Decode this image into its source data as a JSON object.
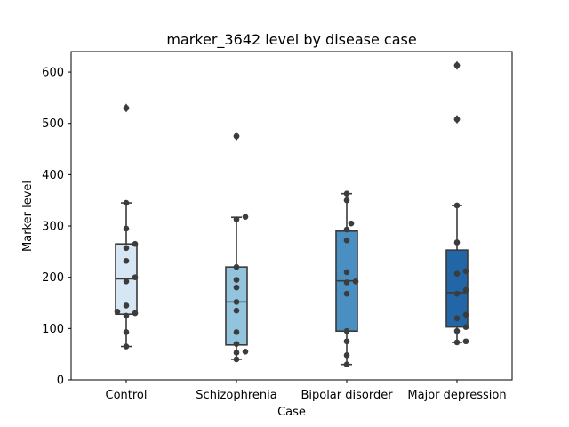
{
  "chart_data": {
    "type": "box",
    "title": "marker_3642 level by disease case",
    "xlabel": "Case",
    "ylabel": "Marker level",
    "ylim": [
      0,
      640
    ],
    "yticks": [
      0,
      100,
      200,
      300,
      400,
      500,
      600
    ],
    "grid": false,
    "legend": "none",
    "categories": [
      "Control",
      "Schizophrenia",
      "Bipolar disorder",
      "Major depression"
    ],
    "colors": [
      "#d6e6f4",
      "#93c4de",
      "#4a8fc2",
      "#2266a8"
    ],
    "series": [
      {
        "whisker_low": 65,
        "q1": 128,
        "median": 197,
        "q3": 265,
        "whisker_high": 345,
        "outliers": [
          530
        ],
        "points": [
          65,
          93,
          125,
          130,
          133,
          145,
          192,
          200,
          232,
          257,
          265,
          295,
          345,
          530
        ]
      },
      {
        "whisker_low": 40,
        "q1": 68,
        "median": 152,
        "q3": 220,
        "whisker_high": 317,
        "outliers": [
          475
        ],
        "points": [
          40,
          53,
          55,
          70,
          93,
          135,
          152,
          180,
          195,
          220,
          313,
          318,
          475
        ]
      },
      {
        "whisker_low": 30,
        "q1": 95,
        "median": 193,
        "q3": 290,
        "whisker_high": 363,
        "outliers": [],
        "points": [
          30,
          48,
          75,
          95,
          168,
          190,
          192,
          210,
          272,
          293,
          305,
          350,
          363
        ]
      },
      {
        "whisker_low": 73,
        "q1": 103,
        "median": 170,
        "q3": 253,
        "whisker_high": 340,
        "outliers": [
          508,
          613
        ],
        "points": [
          73,
          75,
          95,
          103,
          120,
          127,
          168,
          175,
          207,
          212,
          268,
          340,
          508,
          613
        ]
      }
    ]
  }
}
